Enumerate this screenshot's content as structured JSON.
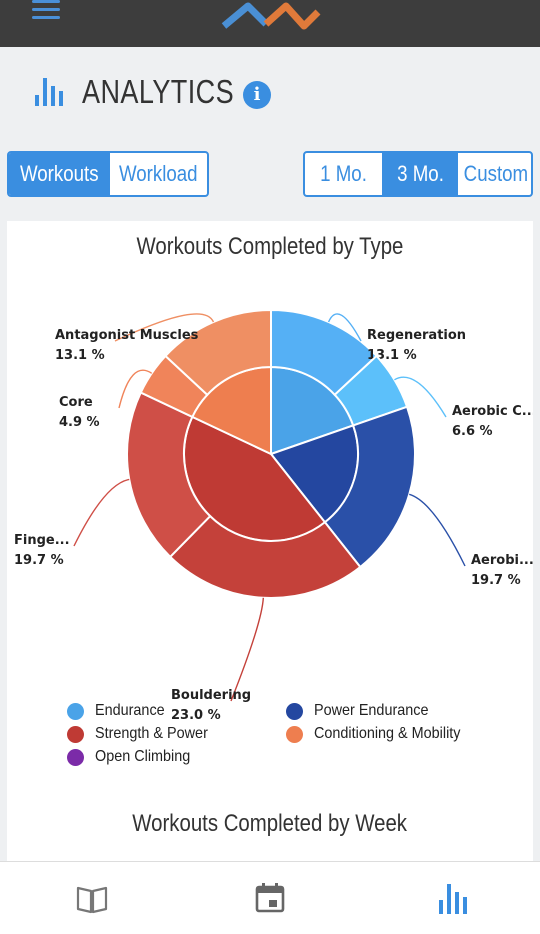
{
  "nav": {
    "menu_icon": "hamburger-icon",
    "logo_icon": "zigzag-logo-icon"
  },
  "header": {
    "title": "ANALYTICS",
    "title_icon": "bar-chart-icon",
    "info_icon": "info-icon"
  },
  "view_toggle": {
    "options": [
      "Workouts",
      "Workload"
    ],
    "selected": "Workouts"
  },
  "range_toggle": {
    "options": [
      "1 Mo.",
      "3 Mo.",
      "Custom"
    ],
    "selected": "3 Mo."
  },
  "colors": {
    "accent": "#3a8ee0",
    "endurance": "#4aa3e8",
    "power_endurance": "#2447a0",
    "strength_power": "#bf3a34",
    "conditioning_mobility": "#ee7e4f",
    "open_climbing": "#7b2ba8"
  },
  "chart_data": {
    "type": "pie",
    "title": "Workouts Completed by Type",
    "inner": [
      {
        "name": "Endurance",
        "value": 19.7,
        "color": "#4aa3e8"
      },
      {
        "name": "Power Endurance",
        "value": 19.7,
        "color": "#2447a0"
      },
      {
        "name": "Strength & Power",
        "value": 42.7,
        "color": "#bf3a34"
      },
      {
        "name": "Conditioning & Mobility",
        "value": 18.0,
        "color": "#ee7e4f"
      }
    ],
    "outer": [
      {
        "label": "Regeneration",
        "value": 13.1,
        "value_label": "13.1 %",
        "color": "#55b0f5"
      },
      {
        "label": "Aerobic C...",
        "value": 6.6,
        "value_label": "6.6 %",
        "color": "#5cc0fa"
      },
      {
        "label": "Aerobi...",
        "value": 19.7,
        "value_label": "19.7 %",
        "color": "#2a50a8"
      },
      {
        "label": "Bouldering",
        "value": 23.0,
        "value_label": "23.0 %",
        "color": "#c4413a"
      },
      {
        "label": "Finge...",
        "value": 19.7,
        "value_label": "19.7 %",
        "color": "#cf4f47"
      },
      {
        "label": "Core",
        "value": 4.9,
        "value_label": "4.9 %",
        "color": "#f0845a"
      },
      {
        "label": "Antagonist Muscles",
        "value": 13.1,
        "value_label": "13.1 %",
        "color": "#ef8f63"
      }
    ],
    "legend": [
      {
        "name": "Endurance",
        "color": "#4aa3e8"
      },
      {
        "name": "Power Endurance",
        "color": "#2447a0"
      },
      {
        "name": "Strength & Power",
        "color": "#bf3a34"
      },
      {
        "name": "Conditioning & Mobility",
        "color": "#ee7e4f"
      },
      {
        "name": "Open Climbing",
        "color": "#7b2ba8"
      }
    ]
  },
  "week_chart": {
    "title": "Workouts Completed by Week"
  },
  "tabs": [
    {
      "icon": "book-icon",
      "active": false
    },
    {
      "icon": "calendar-icon",
      "active": false
    },
    {
      "icon": "bar-chart-icon",
      "active": true
    }
  ]
}
